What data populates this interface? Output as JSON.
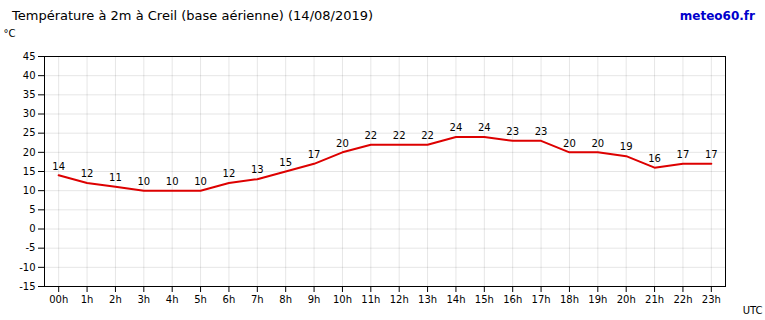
{
  "chart_data": {
    "type": "line",
    "title": "Température à 2m à Creil (base aérienne) (14/08/2019)",
    "x_label": "UTC",
    "y_label": "°C",
    "annotations": [
      {
        "text": "meteo60.fr",
        "color": "#0000cc"
      }
    ],
    "x": [
      0,
      1,
      2,
      3,
      4,
      5,
      6,
      7,
      8,
      9,
      10,
      11,
      12,
      13,
      14,
      15,
      16,
      17,
      18,
      19,
      20,
      21,
      22,
      23
    ],
    "values": [
      14,
      12,
      11,
      10,
      10,
      10,
      12,
      13,
      15,
      17,
      20,
      22,
      22,
      22,
      24,
      24,
      23,
      23,
      20,
      20,
      19,
      16,
      17,
      17
    ],
    "color": "#dd0000",
    "xlim": [
      -0.5,
      23.5
    ],
    "xticks": [
      {
        "value": 0,
        "label": "00h"
      },
      {
        "value": 1,
        "label": "1h"
      },
      {
        "value": 2,
        "label": "2h"
      },
      {
        "value": 3,
        "label": "3h"
      },
      {
        "value": 4,
        "label": "4h"
      },
      {
        "value": 5,
        "label": "5h"
      },
      {
        "value": 6,
        "label": "6h"
      },
      {
        "value": 7,
        "label": "7h"
      },
      {
        "value": 8,
        "label": "8h"
      },
      {
        "value": 9,
        "label": "9h"
      },
      {
        "value": 10,
        "label": "10h"
      },
      {
        "value": 11,
        "label": "11h"
      },
      {
        "value": 12,
        "label": "12h"
      },
      {
        "value": 13,
        "label": "13h"
      },
      {
        "value": 14,
        "label": "14h"
      },
      {
        "value": 15,
        "label": "15h"
      },
      {
        "value": 16,
        "label": "16h"
      },
      {
        "value": 17,
        "label": "17h"
      },
      {
        "value": 18,
        "label": "18h"
      },
      {
        "value": 19,
        "label": "19h"
      },
      {
        "value": 20,
        "label": "20h"
      },
      {
        "value": 21,
        "label": "21h"
      },
      {
        "value": 22,
        "label": "22h"
      },
      {
        "value": 23,
        "label": "23h"
      }
    ],
    "ylim": [
      -15,
      45
    ],
    "yticks": [
      -15,
      -10,
      -5,
      0,
      5,
      10,
      15,
      20,
      25,
      30,
      35,
      40,
      45
    ],
    "grid": true,
    "data_labels": true
  }
}
